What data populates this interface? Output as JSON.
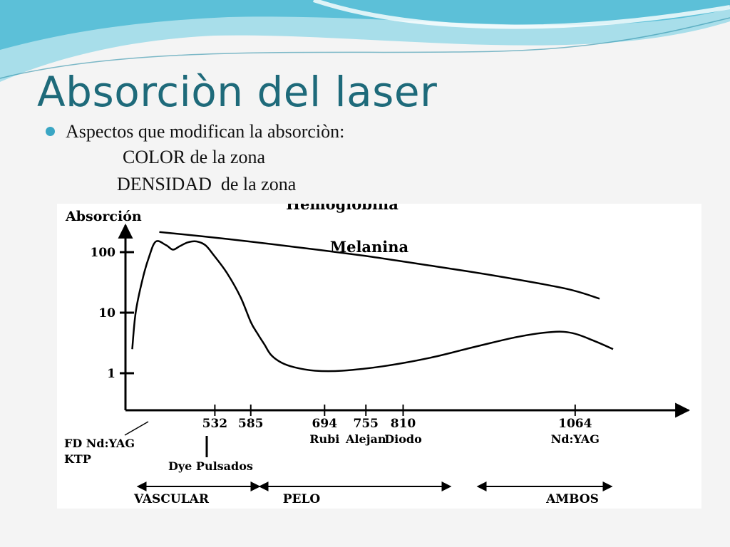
{
  "slide": {
    "title": "Absorciòn del laser",
    "bullet": "Aspectos que modifican la absorciòn:",
    "sub1": "COLOR de la zona",
    "sub2": "DENSIDAD  de la zona",
    "colors": {
      "title": "#1e6a7a",
      "bullet": "#3aa6c4",
      "wave": "#5cc0d8"
    }
  },
  "chart_data": {
    "type": "line",
    "ylabel": "Absorción",
    "yscale": "log",
    "yticks": [
      {
        "value": 100,
        "label": "100"
      },
      {
        "value": 10,
        "label": "10"
      },
      {
        "value": 1,
        "label": "1"
      }
    ],
    "xlim": [
      400,
      1200
    ],
    "xticks": [
      {
        "value": 532,
        "label": "532"
      },
      {
        "value": 585,
        "label": "585"
      },
      {
        "value": 694,
        "label": "694"
      },
      {
        "value": 755,
        "label": "755"
      },
      {
        "value": 810,
        "label": "810"
      },
      {
        "value": 1064,
        "label": "1064"
      }
    ],
    "laser_labels": [
      {
        "x": 694,
        "label": "Rubi"
      },
      {
        "x": 755,
        "label": "Alejan"
      },
      {
        "x": 810,
        "label": "Diodo"
      },
      {
        "x": 1064,
        "label": "Nd:YAG"
      }
    ],
    "left_labels": [
      "FD Nd:YAG",
      "KTP"
    ],
    "dye_label": "Dye Pulsados",
    "series": [
      {
        "name": "Melanina",
        "x": [
          450,
          550,
          650,
          750,
          850,
          950,
          1050,
          1100
        ],
        "y": [
          215,
          165,
          122,
          88,
          60,
          40,
          25,
          17
        ]
      },
      {
        "name": "Hemoglobina",
        "x": [
          410,
          415,
          425,
          435,
          445,
          460,
          470,
          480,
          492,
          505,
          518,
          530,
          550,
          570,
          585,
          595,
          605,
          615,
          630,
          650,
          680,
          720,
          780,
          850,
          920,
          980,
          1030,
          1060,
          1090,
          1120
        ],
        "y": [
          2.5,
          10,
          35,
          85,
          150,
          130,
          110,
          125,
          145,
          150,
          130,
          90,
          45,
          18,
          7,
          4.5,
          3,
          2,
          1.5,
          1.25,
          1.1,
          1.1,
          1.3,
          1.8,
          2.8,
          4.0,
          4.8,
          4.6,
          3.5,
          2.5
        ]
      }
    ],
    "ranges": [
      {
        "label": "VASCULAR",
        "from": 418,
        "to": 598
      },
      {
        "label": "PELO",
        "from": 598,
        "to": 880
      },
      {
        "label": "AMBOS",
        "from": 920,
        "to": 1118
      }
    ]
  }
}
